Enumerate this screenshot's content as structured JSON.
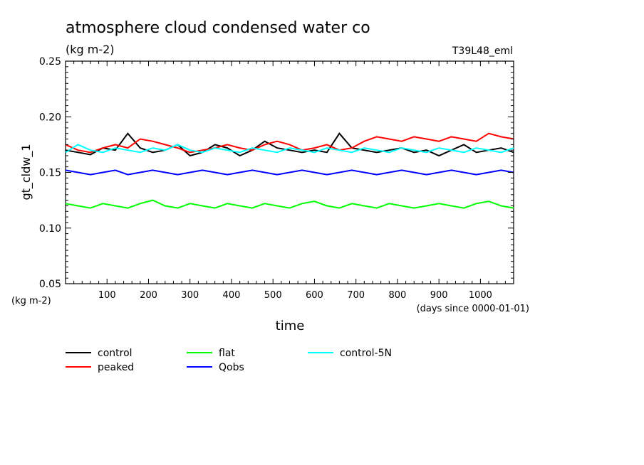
{
  "chart_data": {
    "type": "line",
    "title": "atmosphere cloud condensed water co",
    "subtitle": "(kg m-2)",
    "run_label": "T39L48_eml",
    "xlabel": "time",
    "x_unit_label": "(days since 0000-01-01)",
    "ylabel": "gt_cldw_1",
    "y_unit_label": "(kg m-2)",
    "xlim": [
      0,
      1080
    ],
    "ylim": [
      0.05,
      0.25
    ],
    "x_ticks": [
      "100",
      "200",
      "300",
      "400",
      "500",
      "600",
      "700",
      "800",
      "900",
      "1000"
    ],
    "y_ticks": [
      "0.05",
      "0.10",
      "0.15",
      "0.20",
      "0.25"
    ],
    "legend_position": "below plot",
    "series": [
      {
        "name": "control",
        "color": "#000000",
        "x": [
          0,
          30,
          60,
          90,
          120,
          150,
          180,
          210,
          240,
          270,
          300,
          330,
          360,
          390,
          420,
          450,
          480,
          510,
          540,
          570,
          600,
          630,
          660,
          690,
          720,
          750,
          780,
          810,
          840,
          870,
          900,
          930,
          960,
          990,
          1020,
          1050,
          1080
        ],
        "values": [
          0.17,
          0.168,
          0.166,
          0.172,
          0.17,
          0.185,
          0.172,
          0.168,
          0.17,
          0.175,
          0.165,
          0.168,
          0.175,
          0.172,
          0.165,
          0.17,
          0.178,
          0.172,
          0.17,
          0.168,
          0.17,
          0.168,
          0.185,
          0.172,
          0.17,
          0.168,
          0.17,
          0.172,
          0.168,
          0.17,
          0.165,
          0.17,
          0.175,
          0.168,
          0.17,
          0.172,
          0.168
        ]
      },
      {
        "name": "peaked",
        "color": "#ff0000",
        "x": [
          0,
          30,
          60,
          90,
          120,
          150,
          180,
          210,
          240,
          270,
          300,
          330,
          360,
          390,
          420,
          450,
          480,
          510,
          540,
          570,
          600,
          630,
          660,
          690,
          720,
          750,
          780,
          810,
          840,
          870,
          900,
          930,
          960,
          990,
          1020,
          1050,
          1080
        ],
        "values": [
          0.175,
          0.17,
          0.168,
          0.172,
          0.175,
          0.172,
          0.18,
          0.178,
          0.175,
          0.172,
          0.168,
          0.17,
          0.172,
          0.175,
          0.172,
          0.17,
          0.175,
          0.178,
          0.175,
          0.17,
          0.172,
          0.175,
          0.17,
          0.172,
          0.178,
          0.182,
          0.18,
          0.178,
          0.182,
          0.18,
          0.178,
          0.182,
          0.18,
          0.178,
          0.185,
          0.182,
          0.18
        ]
      },
      {
        "name": "flat",
        "color": "#00ff00",
        "x": [
          0,
          30,
          60,
          90,
          120,
          150,
          180,
          210,
          240,
          270,
          300,
          330,
          360,
          390,
          420,
          450,
          480,
          510,
          540,
          570,
          600,
          630,
          660,
          690,
          720,
          750,
          780,
          810,
          840,
          870,
          900,
          930,
          960,
          990,
          1020,
          1050,
          1080
        ],
        "values": [
          0.122,
          0.12,
          0.118,
          0.122,
          0.12,
          0.118,
          0.122,
          0.125,
          0.12,
          0.118,
          0.122,
          0.12,
          0.118,
          0.122,
          0.12,
          0.118,
          0.122,
          0.12,
          0.118,
          0.122,
          0.124,
          0.12,
          0.118,
          0.122,
          0.12,
          0.118,
          0.122,
          0.12,
          0.118,
          0.12,
          0.122,
          0.12,
          0.118,
          0.122,
          0.124,
          0.12,
          0.118
        ]
      },
      {
        "name": "Qobs",
        "color": "#0000ff",
        "x": [
          0,
          30,
          60,
          90,
          120,
          150,
          180,
          210,
          240,
          270,
          300,
          330,
          360,
          390,
          420,
          450,
          480,
          510,
          540,
          570,
          600,
          630,
          660,
          690,
          720,
          750,
          780,
          810,
          840,
          870,
          900,
          930,
          960,
          990,
          1020,
          1050,
          1080
        ],
        "values": [
          0.152,
          0.15,
          0.148,
          0.15,
          0.152,
          0.148,
          0.15,
          0.152,
          0.15,
          0.148,
          0.15,
          0.152,
          0.15,
          0.148,
          0.15,
          0.152,
          0.15,
          0.148,
          0.15,
          0.152,
          0.15,
          0.148,
          0.15,
          0.152,
          0.15,
          0.148,
          0.15,
          0.152,
          0.15,
          0.148,
          0.15,
          0.152,
          0.15,
          0.148,
          0.15,
          0.152,
          0.15
        ]
      },
      {
        "name": "control-5N",
        "color": "#00ffff",
        "x": [
          0,
          30,
          60,
          90,
          120,
          150,
          180,
          210,
          240,
          270,
          300,
          330,
          360,
          390,
          420,
          450,
          480,
          510,
          540,
          570,
          600,
          630,
          660,
          690,
          720,
          750,
          780,
          810,
          840,
          870,
          900,
          930,
          960,
          990,
          1020,
          1050,
          1080
        ],
        "values": [
          0.168,
          0.175,
          0.17,
          0.168,
          0.172,
          0.17,
          0.168,
          0.172,
          0.17,
          0.175,
          0.17,
          0.168,
          0.172,
          0.17,
          0.168,
          0.172,
          0.17,
          0.168,
          0.172,
          0.17,
          0.168,
          0.172,
          0.17,
          0.168,
          0.172,
          0.17,
          0.168,
          0.172,
          0.17,
          0.168,
          0.172,
          0.17,
          0.168,
          0.172,
          0.17,
          0.168,
          0.172
        ]
      }
    ]
  }
}
